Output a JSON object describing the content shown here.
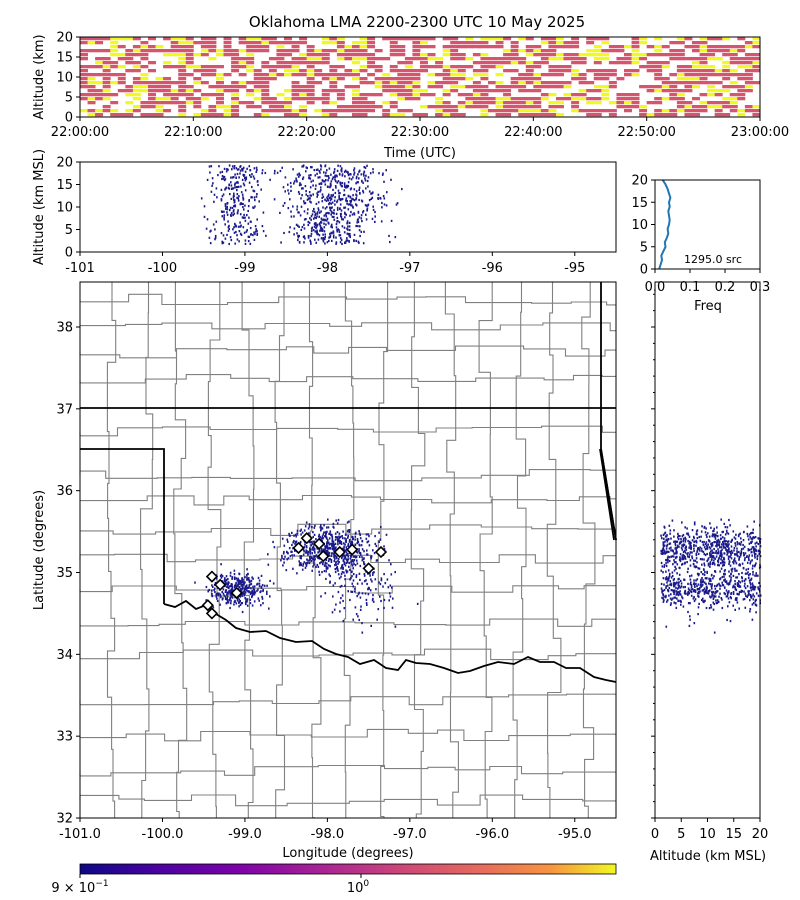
{
  "title": "Oklahoma LMA 2200-2300 UTC 10 May 2025",
  "colors": {
    "low": "#0d0887",
    "mid": "#d5546e",
    "high": "#f0f921",
    "points": "#1a1a8c",
    "hist": "#1f77b4",
    "county": "#808080",
    "state": "#000000"
  },
  "chart_data": [
    {
      "id": "time-height",
      "type": "heatmap",
      "xlabel": "Time (UTC)",
      "ylabel": "Altitude (km)",
      "xticks": [
        "22:00:00",
        "22:10:00",
        "22:20:00",
        "22:30:00",
        "22:40:00",
        "22:50:00",
        "23:00:00"
      ],
      "xlim_minutes": [
        0,
        60
      ],
      "yticks": [
        0,
        5,
        10,
        15,
        20
      ],
      "ylim": [
        0,
        20
      ],
      "colormap": "plasma",
      "color_scale": "log"
    },
    {
      "id": "lon-alt",
      "type": "scatter",
      "xlabel": "",
      "ylabel": "Altitude (km MSL)",
      "xticks": [
        -101,
        -100,
        -99,
        -98,
        -97,
        -96,
        -95
      ],
      "xlim": [
        -101,
        -94.5
      ],
      "yticks": [
        0,
        5,
        10,
        15,
        20
      ],
      "ylim": [
        0,
        20
      ]
    },
    {
      "id": "alt-hist",
      "type": "line",
      "xlabel": "Freq",
      "ylabel": "",
      "xticks": [
        "0.0",
        "0.1",
        "0.2",
        "0.3"
      ],
      "xlim": [
        0,
        0.3
      ],
      "yticks": [
        0,
        5,
        10,
        15,
        20
      ],
      "ylim": [
        0,
        20
      ],
      "annotation": "1295.0 src",
      "series": [
        {
          "x": [
            0.012,
            0.016,
            0.02,
            0.018,
            0.024,
            0.03,
            0.028,
            0.034,
            0.038,
            0.036,
            0.04,
            0.042,
            0.04,
            0.038,
            0.042,
            0.04,
            0.044,
            0.04,
            0.036,
            0.03,
            0.022
          ],
          "y": [
            0,
            1,
            2,
            3,
            4,
            5,
            6,
            7,
            8,
            9,
            10,
            11,
            12,
            13,
            14,
            15,
            16,
            17,
            18,
            19,
            20
          ]
        }
      ]
    },
    {
      "id": "plan-view",
      "type": "scatter",
      "xlabel": "Longitude (degrees)",
      "ylabel": "Latitude (degrees)",
      "xticks": [
        "-101.0",
        "-100.0",
        "-99.0",
        "-98.0",
        "-97.0",
        "-96.0",
        "-95.0"
      ],
      "xlim": [
        -101,
        -94.5
      ],
      "yticks": [
        32,
        33,
        34,
        35,
        36,
        37,
        38
      ],
      "ylim": [
        32,
        38.55
      ],
      "flash_markers": [
        {
          "lon": -98.35,
          "lat": 35.3
        },
        {
          "lon": -98.25,
          "lat": 35.42
        },
        {
          "lon": -98.1,
          "lat": 35.35
        },
        {
          "lon": -98.05,
          "lat": 35.2
        },
        {
          "lon": -97.85,
          "lat": 35.25
        },
        {
          "lon": -97.7,
          "lat": 35.28
        },
        {
          "lon": -97.5,
          "lat": 35.05
        },
        {
          "lon": -97.35,
          "lat": 35.25
        },
        {
          "lon": -99.4,
          "lat": 34.95
        },
        {
          "lon": -99.3,
          "lat": 34.85
        },
        {
          "lon": -99.1,
          "lat": 34.75
        },
        {
          "lon": -99.45,
          "lat": 34.6
        },
        {
          "lon": -99.4,
          "lat": 34.5
        }
      ]
    },
    {
      "id": "alt-lat",
      "type": "scatter",
      "xlabel": "Altitude (km MSL)",
      "ylabel": "",
      "xticks": [
        0,
        5,
        10,
        15,
        20
      ],
      "xlim": [
        0,
        20
      ],
      "ylim": [
        32,
        38.55
      ]
    }
  ],
  "colorbar": {
    "label_min": "9 × 10",
    "label_min_exp": "−1",
    "label_mid": "10",
    "label_mid_exp": "0"
  }
}
